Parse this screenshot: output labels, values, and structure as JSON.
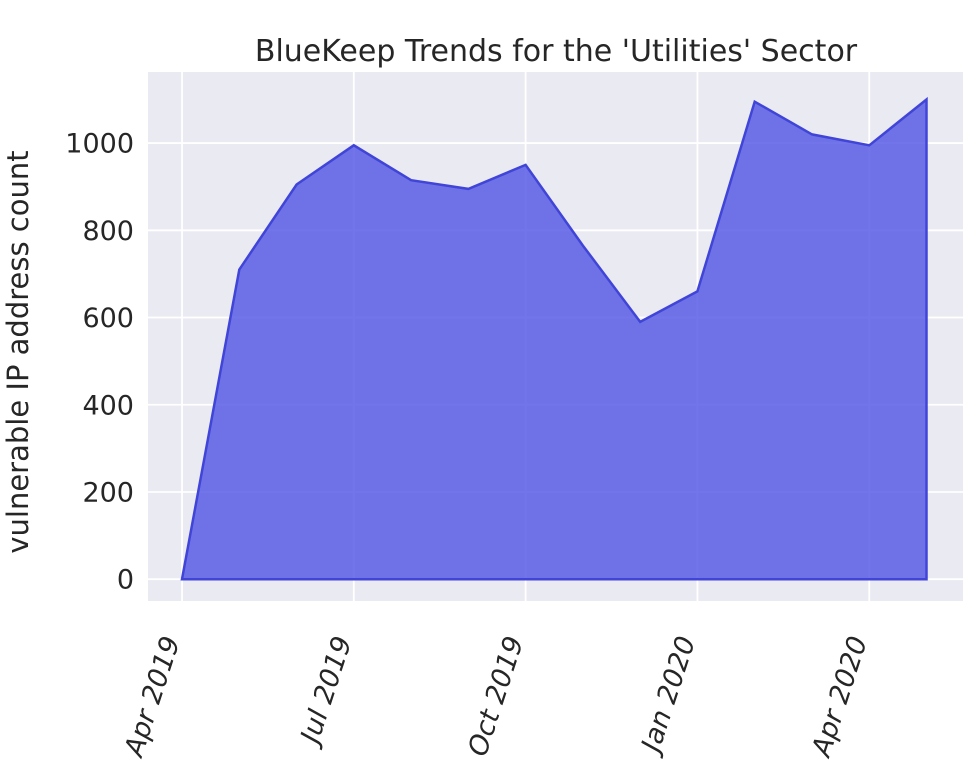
{
  "chart_data": {
    "type": "area",
    "title": "BlueKeep Trends for the 'Utilities' Sector",
    "xlabel": "",
    "ylabel": "vulnerable IP address count",
    "categories": [
      "Apr 2019",
      "May 2019",
      "Jun 2019",
      "Jul 2019",
      "Aug 2019",
      "Sep 2019",
      "Oct 2019",
      "Nov 2019",
      "Dec 2019",
      "Jan 2020",
      "Feb 2020",
      "Mar 2020",
      "Apr 2020",
      "May 2020"
    ],
    "values": [
      0,
      710,
      905,
      995,
      915,
      895,
      950,
      765,
      590,
      660,
      1095,
      1020,
      995,
      1100
    ],
    "yticks": [
      0,
      200,
      400,
      600,
      800,
      1000
    ],
    "xticks": [
      {
        "index": 0,
        "label": "Apr 2019"
      },
      {
        "index": 3,
        "label": "Jul 2019"
      },
      {
        "index": 6,
        "label": "Oct 2019"
      },
      {
        "index": 9,
        "label": "Jan 2020"
      },
      {
        "index": 12,
        "label": "Apr 2020"
      }
    ],
    "ylim": [
      -50,
      1163
    ],
    "xlim_index": [
      -0.594,
      13.637
    ],
    "grid": true,
    "legend_position": "none",
    "xtick_rotation_deg": 72,
    "colors": {
      "fill": "#595de5",
      "fill_opacity": 0.85,
      "line": "#4045d8",
      "plot_bg": "#eaeaf2",
      "grid": "#ffffff",
      "text": "#262626"
    }
  }
}
